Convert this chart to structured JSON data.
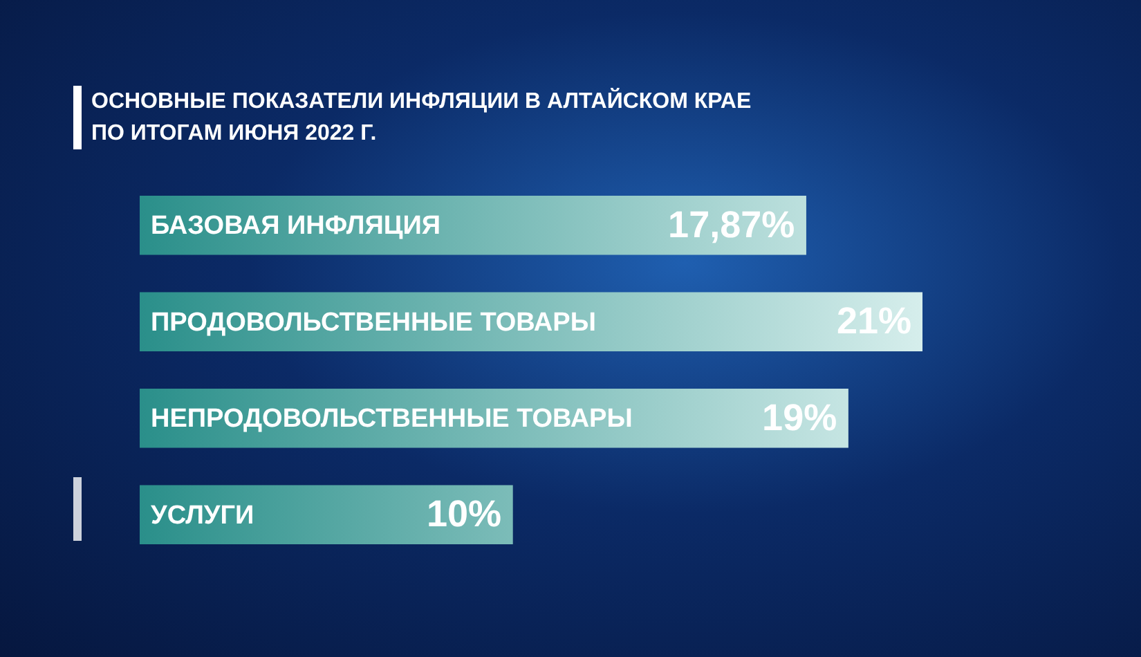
{
  "chart_data": {
    "type": "bar",
    "orientation": "horizontal",
    "tick_labels": false,
    "title": "ОСНОВНЫЕ ПОКАЗАТЕЛИ ИНФЛЯЦИИ В АЛТАЙСКОМ КРАЕ ПО ИТОГАМ ИЮНЯ 2022 Г.",
    "categories": [
      "БАЗОВАЯ ИНФЛЯЦИЯ",
      "ПРОДОВОЛЬСТВЕННЫЕ ТОВАРЫ",
      "НЕПРОДОВОЛЬСТВЕННЫЕ ТОВАРЫ",
      "УСЛУГИ"
    ],
    "values": [
      17.87,
      21,
      19,
      10
    ],
    "value_labels": [
      "17,87%",
      "21%",
      "19%",
      "10%"
    ],
    "color": "#2a8f8a",
    "legend": false
  }
}
